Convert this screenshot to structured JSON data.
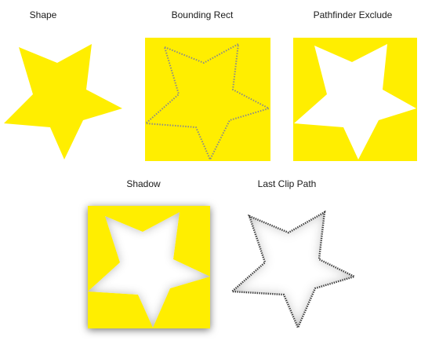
{
  "panels": [
    {
      "id": "shape",
      "label": "Shape"
    },
    {
      "id": "bounding",
      "label": "Bounding Rect"
    },
    {
      "id": "exclude",
      "label": "Pathfinder Exclude"
    },
    {
      "id": "shadow",
      "label": "Shadow"
    },
    {
      "id": "clip",
      "label": "Last Clip Path"
    }
  ],
  "colors": {
    "fill": "#ffee00",
    "dotted": "#8a8a8a",
    "shadow": "#000000",
    "label": "#1a1a1a"
  }
}
